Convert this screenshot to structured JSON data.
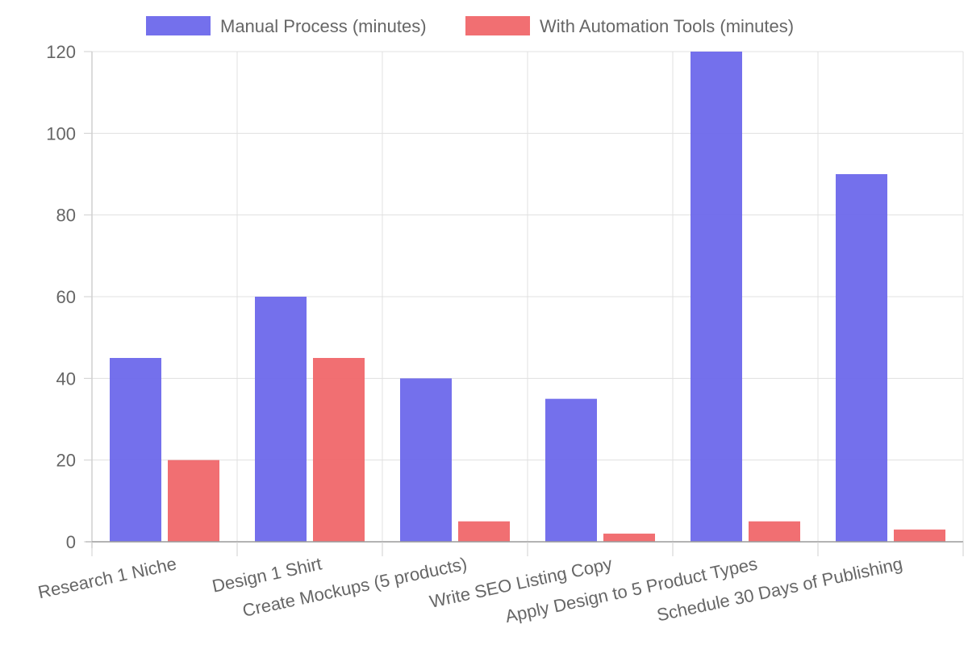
{
  "chart_data": {
    "type": "bar",
    "title": "",
    "xlabel": "",
    "ylabel": "",
    "categories": [
      "Research 1 Niche",
      "Design 1 Shirt",
      "Create Mockups (5 products)",
      "Write SEO Listing Copy",
      "Apply Design to 5 Product Types",
      "Schedule 30 Days of Publishing"
    ],
    "series": [
      {
        "name": "Manual Process (minutes)",
        "values": [
          45,
          60,
          40,
          35,
          120,
          90
        ],
        "color": "#6d68eb"
      },
      {
        "name": "With Automation Tools (minutes)",
        "values": [
          20,
          45,
          5,
          2,
          5,
          3
        ],
        "color": "#f0676a"
      }
    ],
    "ylim": [
      0,
      120
    ],
    "yticks": [
      0,
      20,
      40,
      60,
      80,
      100,
      120
    ],
    "grid": true,
    "legend_position": "top"
  }
}
